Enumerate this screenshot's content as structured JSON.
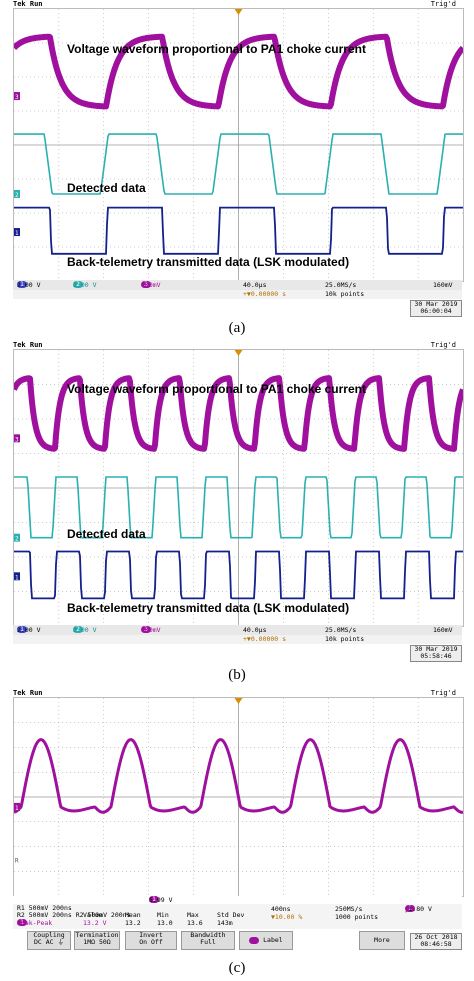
{
  "colors": {
    "ch3": "#a0109e",
    "ch2": "#2ab0b0",
    "ch1": "#14208c",
    "grid": "#9a9a9a",
    "marker": "#d89000"
  },
  "panel_a": {
    "status_left": "Tek Run",
    "status_right": "Trig'd",
    "label_voltage": "Voltage waveform proportional to PA1 choke current",
    "label_detected": "Detected data",
    "label_back": "Back-telemetry transmitted data (LSK modulated)",
    "ch1": "2.00 V",
    "ch2": "2.00 V",
    "ch3": "100mV",
    "timebase": "40.0µs",
    "delay": "+▼0.00000 s",
    "sample": "25.0MS/s",
    "points": "10k points",
    "trigger_level": "160mV",
    "date": "30 Mar 2019",
    "time": "06:00:04",
    "caption": "(a)"
  },
  "panel_b": {
    "status_left": "Tek Run",
    "status_right": "Trig'd",
    "label_voltage": "Voltage waveform proportional to PA1 choke current",
    "label_detected": "Detected data",
    "label_back": "Back-telemetry transmitted data (LSK modulated)",
    "ch1": "2.00 V",
    "ch2": "2.00 V",
    "ch3": "100mV",
    "timebase": "40.0µs",
    "delay": "+▼0.00000 s",
    "sample": "25.0MS/s",
    "points": "10k points",
    "trigger_level": "160mV",
    "date": "30 Mar 2019",
    "time": "05:58:46",
    "caption": "(b)"
  },
  "panel_c": {
    "status_left": "Tek Run",
    "status_right": "Trig'd",
    "cursor_readout": "5.99 V",
    "meas_row1": "R1  500mV     200ns",
    "meas_row2": "R2  500mV     200ns     R2  500mV     200ns",
    "meas_headers": [
      "Value",
      "Mean",
      "Min",
      "Max",
      "Std Dev"
    ],
    "meas_name": "Peak-Peak",
    "meas_values": [
      "13.2 V",
      "13.2",
      "13.0",
      "13.6",
      "143m"
    ],
    "timebase": "400ns",
    "delay": "10.00 %",
    "sample": "250MS/s",
    "points": "1000 points",
    "trigger_level": "1.80 V",
    "coupling_label": "Coupling",
    "coupling_opts": "DC  AC  ⏚",
    "termination_label": "Termination",
    "termination_opts": "1MΩ  50Ω",
    "invert_label": "Invert",
    "invert_opts": "On   Off",
    "bandwidth_label": "Bandwidth",
    "bandwidth_opts": "Full",
    "label_btn": "Label",
    "more_btn": "More",
    "date": "26 Oct 2018",
    "time": "08:46:58",
    "caption": "(c)"
  },
  "chart_data": [
    {
      "type": "line",
      "title": "",
      "panel": "(a)",
      "series": [
        {
          "name": "Voltage waveform proportional to PA1 choke current",
          "channel": 3,
          "periods": 4,
          "shape": "exponential charge/discharge"
        },
        {
          "name": "Detected data",
          "channel": 2,
          "periods": 4,
          "duty": 0.5
        },
        {
          "name": "Back-telemetry transmitted data (LSK modulated)",
          "channel": 1,
          "periods": 4,
          "duty": 0.5
        }
      ]
    },
    {
      "type": "line",
      "title": "",
      "panel": "(b)",
      "series": [
        {
          "name": "Voltage waveform proportional to PA1 choke current",
          "channel": 3,
          "periods": 9,
          "shape": "exponential charge/discharge"
        },
        {
          "name": "Detected data",
          "channel": 2,
          "periods": 9,
          "duty": 0.5
        },
        {
          "name": "Back-telemetry transmitted data (LSK modulated)",
          "channel": 1,
          "periods": 9,
          "duty": 0.5
        }
      ]
    },
    {
      "type": "line",
      "title": "",
      "panel": "(c)",
      "series": [
        {
          "name": "Peak-Peak 13.2 V",
          "channel": 1,
          "periods": 5,
          "shape": "pulsed ringing"
        }
      ]
    }
  ]
}
